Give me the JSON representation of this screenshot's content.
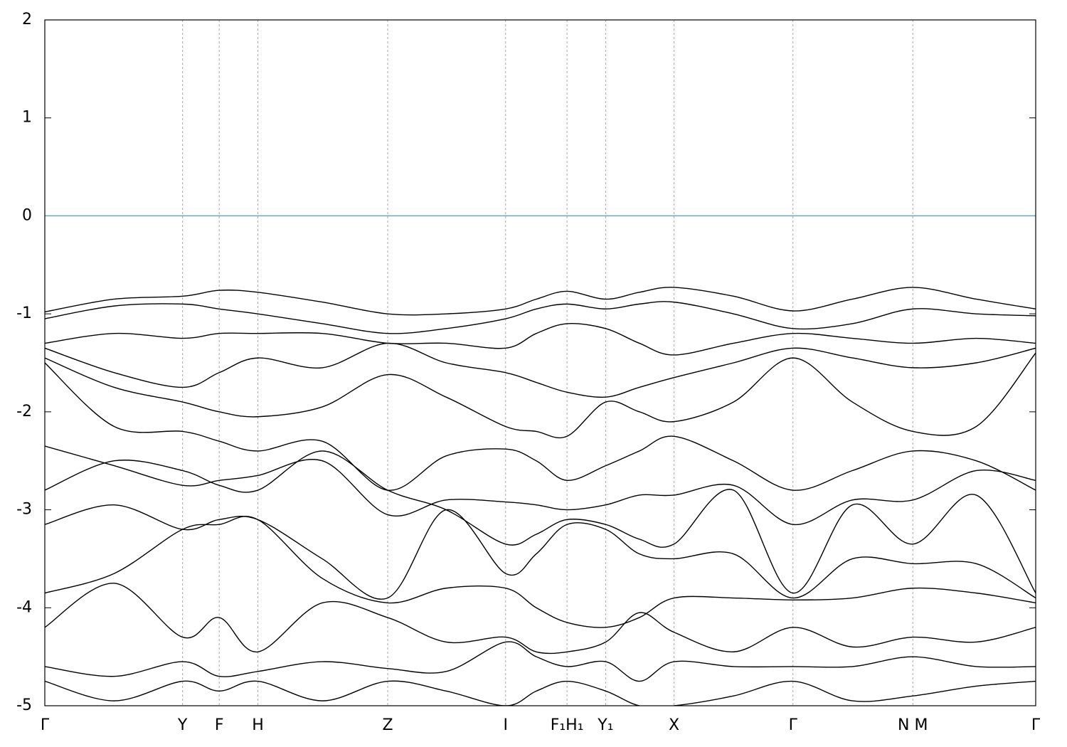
{
  "chart_data": {
    "type": "line",
    "x": [
      0,
      0.07,
      0.139,
      0.176,
      0.215,
      0.28,
      0.346,
      0.405,
      0.465,
      0.496,
      0.527,
      0.566,
      0.6,
      0.635,
      0.695,
      0.755,
      0.815,
      0.876,
      0.94,
      1.0
    ],
    "color": "#000000",
    "series": [
      {
        "values": [
          -0.98,
          -0.85,
          -0.82,
          -0.76,
          -0.78,
          -0.88,
          -1.0,
          -1.0,
          -0.95,
          -0.85,
          -0.77,
          -0.85,
          -0.78,
          -0.73,
          -0.82,
          -0.97,
          -0.85,
          -0.73,
          -0.85,
          -0.95
        ]
      },
      {
        "values": [
          -1.05,
          -0.92,
          -0.9,
          -0.95,
          -1.0,
          -1.1,
          -1.2,
          -1.15,
          -1.05,
          -0.95,
          -0.9,
          -0.95,
          -0.9,
          -0.88,
          -1.0,
          -1.15,
          -1.1,
          -0.95,
          -1.0,
          -1.02
        ]
      },
      {
        "values": [
          -1.3,
          -1.2,
          -1.25,
          -1.2,
          -1.2,
          -1.2,
          -1.3,
          -1.3,
          -1.35,
          -1.2,
          -1.1,
          -1.15,
          -1.3,
          -1.42,
          -1.3,
          -1.2,
          -1.25,
          -1.3,
          -1.25,
          -1.3
        ]
      },
      {
        "values": [
          -1.35,
          -1.6,
          -1.75,
          -1.6,
          -1.45,
          -1.55,
          -1.3,
          -1.5,
          -1.6,
          -1.7,
          -1.8,
          -1.85,
          -1.75,
          -1.65,
          -1.5,
          -1.35,
          -1.45,
          -1.55,
          -1.5,
          -1.35
        ]
      },
      {
        "values": [
          -1.45,
          -1.75,
          -1.9,
          -2.0,
          -2.05,
          -1.95,
          -1.62,
          -1.85,
          -2.15,
          -2.2,
          -2.25,
          -1.9,
          -2.0,
          -2.1,
          -1.9,
          -1.45,
          -1.9,
          -2.2,
          -2.15,
          -1.4
        ]
      },
      {
        "values": [
          -1.5,
          -2.15,
          -2.2,
          -2.3,
          -2.4,
          -2.3,
          -2.8,
          -2.45,
          -2.38,
          -2.5,
          -2.7,
          -2.55,
          -2.4,
          -2.25,
          -2.5,
          -2.8,
          -2.6,
          -2.4,
          -2.5,
          -2.8
        ]
      },
      {
        "values": [
          -2.35,
          -2.55,
          -2.75,
          -2.7,
          -2.65,
          -2.5,
          -3.05,
          -2.9,
          -2.92,
          -2.95,
          -3.0,
          -2.95,
          -2.85,
          -2.85,
          -2.75,
          -3.15,
          -2.9,
          -2.9,
          -2.6,
          -2.7
        ]
      },
      {
        "values": [
          -2.8,
          -2.5,
          -2.6,
          -2.75,
          -2.8,
          -2.4,
          -2.8,
          -3.0,
          -3.35,
          -3.25,
          -3.1,
          -3.15,
          -3.3,
          -3.35,
          -2.8,
          -3.85,
          -2.95,
          -3.35,
          -2.85,
          -3.85
        ]
      },
      {
        "values": [
          -3.15,
          -2.95,
          -3.2,
          -3.1,
          -3.1,
          -3.5,
          -3.9,
          -3.0,
          -3.65,
          -3.45,
          -3.15,
          -3.2,
          -3.45,
          -3.5,
          -3.45,
          -3.9,
          -3.5,
          -3.55,
          -3.55,
          -3.9
        ]
      },
      {
        "values": [
          -3.85,
          -3.65,
          -3.2,
          -3.15,
          -3.1,
          -3.7,
          -3.95,
          -3.8,
          -3.8,
          -4.0,
          -4.15,
          -4.2,
          -4.1,
          -3.9,
          -3.9,
          -3.92,
          -3.9,
          -3.8,
          -3.85,
          -3.95
        ]
      },
      {
        "values": [
          -4.2,
          -3.75,
          -4.3,
          -4.1,
          -4.45,
          -3.95,
          -4.1,
          -4.35,
          -4.3,
          -4.45,
          -4.45,
          -4.35,
          -4.05,
          -4.25,
          -4.45,
          -4.2,
          -4.4,
          -4.3,
          -4.35,
          -4.2
        ]
      },
      {
        "values": [
          -4.6,
          -4.7,
          -4.55,
          -4.7,
          -4.65,
          -4.55,
          -4.62,
          -4.65,
          -4.35,
          -4.5,
          -4.6,
          -4.55,
          -4.75,
          -4.55,
          -4.6,
          -4.6,
          -4.6,
          -4.5,
          -4.6,
          -4.6
        ]
      },
      {
        "values": [
          -4.75,
          -4.95,
          -4.75,
          -4.85,
          -4.75,
          -4.95,
          -4.75,
          -4.85,
          -5.0,
          -4.85,
          -4.75,
          -4.85,
          -5.0,
          -5.0,
          -4.9,
          -4.75,
          -4.95,
          -4.9,
          -4.8,
          -4.75
        ]
      }
    ],
    "reference_line": {
      "value": 0,
      "color": "#5aaec8"
    },
    "xlim": [
      0,
      1
    ],
    "xticks": [
      {
        "value": 0,
        "label": "Γ"
      },
      {
        "value": 0.139,
        "label": "Y"
      },
      {
        "value": 0.176,
        "label": "F"
      },
      {
        "value": 0.215,
        "label": "H"
      },
      {
        "value": 0.346,
        "label": "Z"
      },
      {
        "value": 0.465,
        "label": "I"
      },
      {
        "value": 0.527,
        "label": "F₁H₁"
      },
      {
        "value": 0.566,
        "label": "Y₁"
      },
      {
        "value": 0.635,
        "label": "X"
      },
      {
        "value": 0.755,
        "label": "Γ"
      },
      {
        "value": 0.876,
        "label": "N M"
      },
      {
        "value": 1.0,
        "label": "Γ"
      }
    ],
    "ylim": [
      -5,
      2
    ],
    "yticks": [
      -5,
      -4,
      -3,
      -2,
      -1,
      0,
      1,
      2
    ],
    "grid": true
  }
}
